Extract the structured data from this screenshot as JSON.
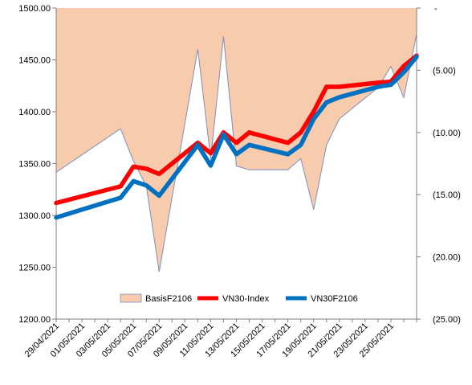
{
  "chart_data": {
    "type": "line",
    "title": "",
    "x": [
      "29/04/2021",
      "04/05/2021",
      "05/05/2021",
      "06/05/2021",
      "07/05/2021",
      "10/05/2021",
      "11/05/2021",
      "12/05/2021",
      "13/05/2021",
      "14/05/2021",
      "17/05/2021",
      "18/05/2021",
      "19/05/2021",
      "20/05/2021",
      "21/05/2021",
      "24/05/2021",
      "25/05/2021",
      "26/05/2021",
      "27/05/2021"
    ],
    "x_tick_labels": [
      "29/04/2021",
      "01/05/2021",
      "03/05/2021",
      "05/05/2021",
      "07/05/2021",
      "09/05/2021",
      "11/05/2021",
      "13/05/2021",
      "15/05/2021",
      "17/05/2021",
      "19/05/2021",
      "21/05/2021",
      "23/05/2021",
      "25/05/2021"
    ],
    "y_left": {
      "min": 1200,
      "max": 1500,
      "ticks": [
        "1200.00",
        "1250.00",
        "1300.00",
        "1350.00",
        "1400.00",
        "1450.00",
        "1500.00"
      ]
    },
    "y_right": {
      "min": 0,
      "max": 25,
      "inverted": true,
      "ticks": [
        "-",
        "(5.00)",
        "(10.00)",
        "(15.00)",
        "(20.00)",
        "(25.00)"
      ]
    },
    "series": [
      {
        "name": "BasisF2106",
        "type": "area",
        "axis": "right",
        "color": "#f8cbad",
        "edge_color": "#7a8fbf",
        "values": [
          13.2,
          9.7,
          12.3,
          14.3,
          21.2,
          3.3,
          12.1,
          2.3,
          12.7,
          13.0,
          13.0,
          12.1,
          16.2,
          11.0,
          8.9,
          6.4,
          4.7,
          7.2,
          2.1
        ]
      },
      {
        "name": "VN30-Index",
        "type": "line",
        "axis": "left",
        "color": "#ff0000",
        "values": [
          1312,
          1328,
          1347,
          1345,
          1340,
          1370,
          1360,
          1380,
          1370,
          1380,
          1370,
          1380,
          1400,
          1424,
          1424,
          1428,
          1429,
          1444,
          1454
        ]
      },
      {
        "name": "VN30F2106",
        "type": "line",
        "axis": "left",
        "color": "#0070c0",
        "values": [
          1298,
          1317,
          1333,
          1329,
          1319,
          1368,
          1348,
          1378,
          1359,
          1368,
          1359,
          1368,
          1393,
          1409,
          1414,
          1424,
          1426,
          1438,
          1453
        ]
      }
    ],
    "legend": {
      "placement": "bottom-center-inside"
    },
    "grid": false
  }
}
